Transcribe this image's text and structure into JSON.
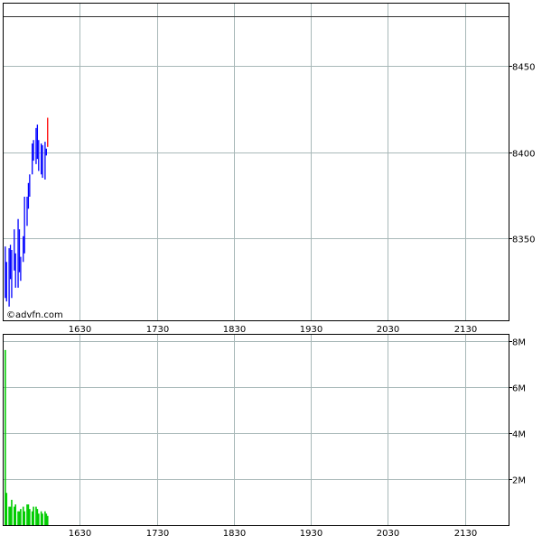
{
  "watermark": "©advfn.com",
  "colors": {
    "price_up": "#0000ff",
    "price_last": "#ff0000",
    "volume": "#00cc00",
    "grid": "#a8b8b8",
    "frame": "#000000",
    "reference_line": "#333333"
  },
  "chart_data": [
    {
      "type": "bar",
      "subtype": "high-low price bars",
      "x_ticks": [
        "1630",
        "1730",
        "1830",
        "1930",
        "2030",
        "2130"
      ],
      "x_range": [
        "15:30",
        "22:04"
      ],
      "y_ticks": [
        8350,
        8400,
        8450
      ],
      "ylim": [
        8302,
        8487
      ],
      "grid": true,
      "reference_line": 8479,
      "times": [
        "15:32",
        "15:33",
        "15:35",
        "15:36",
        "15:37",
        "15:39",
        "15:40",
        "15:42",
        "15:43",
        "15:44",
        "15:46",
        "15:47",
        "15:49",
        "15:50",
        "15:51",
        "15:53",
        "15:54",
        "15:56",
        "15:57",
        "15:58",
        "16:00",
        "16:01",
        "16:03",
        "16:04",
        "16:05"
      ],
      "high": [
        8345,
        8336,
        8344,
        8346,
        8343,
        8355,
        8341,
        8361,
        8355,
        8339,
        8351,
        8374,
        8374,
        8382,
        8387,
        8405,
        8407,
        8414,
        8416,
        8407,
        8405,
        8404,
        8406,
        8402,
        8420
      ],
      "low": [
        8315,
        8313,
        8310,
        8326,
        8315,
        8331,
        8321,
        8321,
        8330,
        8325,
        8336,
        8341,
        8357,
        8367,
        8374,
        8387,
        8395,
        8393,
        8396,
        8389,
        8387,
        8385,
        8384,
        8398,
        8403
      ]
    },
    {
      "type": "bar",
      "subtype": "volume",
      "x_ticks": [
        "1630",
        "1730",
        "1830",
        "1930",
        "2030",
        "2130"
      ],
      "y_ticks": [
        "2M",
        "4M",
        "6M",
        "8M"
      ],
      "y_tick_values": [
        2000000,
        4000000,
        6000000,
        8000000
      ],
      "ylim": [
        0,
        8300000
      ],
      "grid": true,
      "volume_millions": [
        7.6,
        1.4,
        0.8,
        0.8,
        1.1,
        0.8,
        0.9,
        0.6,
        0.6,
        0.7,
        0.8,
        0.6,
        0.9,
        0.9,
        0.7,
        0.6,
        0.8,
        0.8,
        0.7,
        0.5,
        0.6,
        0.5,
        0.6,
        0.5,
        0.4
      ]
    }
  ]
}
